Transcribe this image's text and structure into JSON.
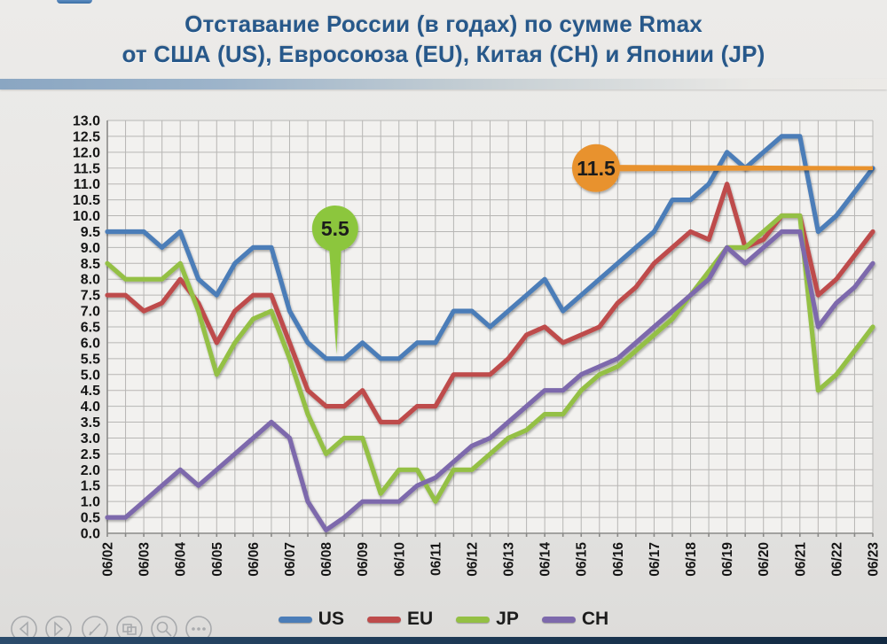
{
  "title": {
    "line1": "Отставание России (в годах) по сумме Rmax",
    "line2": "от США (US), Евросоюза (EU), Китая (CH) и Японии (JP)",
    "color": "#27588a"
  },
  "chart_data": {
    "type": "line",
    "x": [
      "06/02",
      "12/02",
      "06/03",
      "12/03",
      "06/04",
      "12/04",
      "06/05",
      "12/05",
      "06/06",
      "12/06",
      "06/07",
      "12/07",
      "06/08",
      "12/08",
      "06/09",
      "12/09",
      "06/10",
      "12/10",
      "06/11",
      "12/11",
      "06/12",
      "12/12",
      "06/13",
      "12/13",
      "06/14",
      "12/14",
      "06/15",
      "12/15",
      "06/16",
      "12/16",
      "06/17",
      "12/17",
      "06/18",
      "12/18",
      "06/19",
      "12/19",
      "06/20",
      "12/20",
      "06/21",
      "12/21",
      "06/22",
      "12/22",
      "06/23"
    ],
    "x_tick_labels": [
      "06/02",
      "06/03",
      "06/04",
      "06/05",
      "06/06",
      "06/07",
      "06/08",
      "06/09",
      "06/10",
      "06/11",
      "06/12",
      "06/13",
      "06/14",
      "06/15",
      "06/16",
      "06/17",
      "06/18",
      "06/19",
      "06/20",
      "06/21",
      "06/22",
      "06/23"
    ],
    "ylim": [
      0,
      13
    ],
    "ytick_step": 0.5,
    "grid": true,
    "legend_position": "bottom",
    "series": [
      {
        "name": "US",
        "color": "#4b7db8",
        "values": [
          9.5,
          9.5,
          9.5,
          9.0,
          9.5,
          8.0,
          7.5,
          8.5,
          9.0,
          9.0,
          7.0,
          6.0,
          5.5,
          5.5,
          6.0,
          5.5,
          5.5,
          6.0,
          6.0,
          7.0,
          7.0,
          6.5,
          7.0,
          7.5,
          8.0,
          7.0,
          7.5,
          8.0,
          8.5,
          9.0,
          9.5,
          10.5,
          10.5,
          11.0,
          12.0,
          11.5,
          12.0,
          12.5,
          12.5,
          9.5,
          10.0,
          10.75,
          11.5
        ]
      },
      {
        "name": "EU",
        "color": "#be4b4b",
        "values": [
          7.5,
          7.5,
          7.0,
          7.25,
          8.0,
          7.25,
          6.0,
          7.0,
          7.5,
          7.5,
          6.0,
          4.5,
          4.0,
          4.0,
          4.5,
          3.5,
          3.5,
          4.0,
          4.0,
          5.0,
          5.0,
          5.0,
          5.5,
          6.25,
          6.5,
          6.0,
          6.25,
          6.5,
          7.25,
          7.75,
          8.5,
          9.0,
          9.5,
          9.25,
          11.0,
          9.0,
          9.25,
          10.0,
          10.0,
          7.5,
          8.0,
          8.75,
          9.5
        ]
      },
      {
        "name": "JP",
        "color": "#94c044",
        "values": [
          8.5,
          8.0,
          8.0,
          8.0,
          8.5,
          7.0,
          5.0,
          6.0,
          6.75,
          7.0,
          5.5,
          3.75,
          2.5,
          3.0,
          3.0,
          1.25,
          2.0,
          2.0,
          1.0,
          2.0,
          2.0,
          2.5,
          3.0,
          3.25,
          3.75,
          3.75,
          4.5,
          5.0,
          5.25,
          5.75,
          6.25,
          6.75,
          7.5,
          8.25,
          9.0,
          9.0,
          9.5,
          10.0,
          10.0,
          4.5,
          5.0,
          5.75,
          6.5
        ]
      },
      {
        "name": "CH",
        "color": "#7d69ac",
        "values": [
          0.5,
          0.5,
          1.0,
          1.5,
          2.0,
          1.5,
          2.0,
          2.5,
          3.0,
          3.5,
          3.0,
          1.0,
          0.1,
          0.5,
          1.0,
          1.0,
          1.0,
          1.5,
          1.75,
          2.25,
          2.75,
          3.0,
          3.5,
          4.0,
          4.5,
          4.5,
          5.0,
          5.25,
          5.5,
          6.0,
          6.5,
          7.0,
          7.5,
          8.0,
          9.0,
          8.5,
          9.0,
          9.5,
          9.5,
          6.5,
          7.25,
          7.75,
          8.5
        ]
      }
    ],
    "annotations": [
      {
        "label": "5.5",
        "color": "#8cc63e",
        "text_color": "#1b1b1b",
        "kind": "pin-down",
        "anchor_index": 12.5,
        "anchor_value": 5.5,
        "series": "US"
      },
      {
        "label": "11.5",
        "color": "#e8922f",
        "text_color": "#1b1b1b",
        "kind": "callout-right",
        "anchor_index": 42,
        "anchor_value": 11.5,
        "series": "US"
      }
    ]
  },
  "toolbar": {
    "icons": [
      "previous-slide",
      "next-slide",
      "pen",
      "slide-overview",
      "zoom",
      "more-options"
    ]
  }
}
